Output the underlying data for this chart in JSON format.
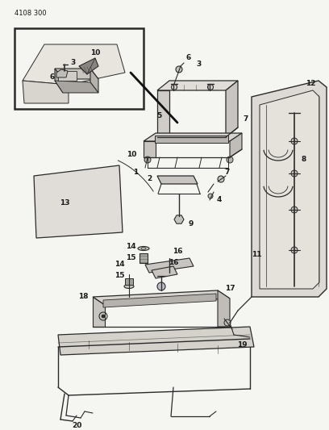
{
  "page_id": "4108 300",
  "bg_color": "#f5f5f2",
  "line_color": "#2a2a2a",
  "label_color": "#1a1a1a",
  "label_fontsize": 6.5,
  "page_id_fontsize": 6.5,
  "fig_width": 4.08,
  "fig_height": 5.33,
  "dpi": 100
}
